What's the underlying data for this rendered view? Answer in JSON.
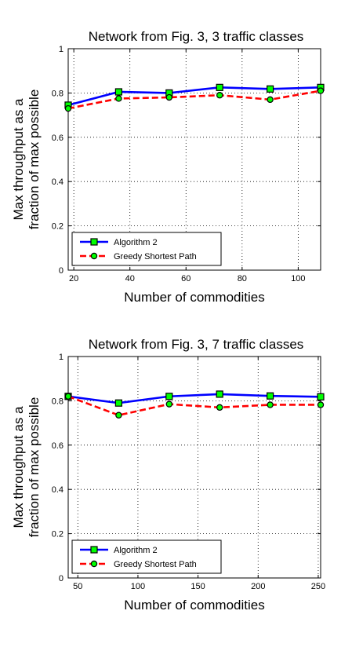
{
  "chart_data": [
    {
      "type": "line",
      "title": "Network from Fig. 3, 3 traffic classes",
      "xlabel": "Number of commodities",
      "ylabel": [
        "Max throughput as a",
        "fraction of max possible"
      ],
      "xlim": [
        18,
        108
      ],
      "ylim": [
        0,
        1
      ],
      "xticks": [
        20,
        40,
        60,
        80,
        100
      ],
      "yticks": [
        0,
        0.2,
        0.4,
        0.6,
        0.8,
        1
      ],
      "grid": true,
      "legend_position": "bottom-left",
      "x": [
        18,
        36,
        54,
        72,
        90,
        108
      ],
      "series": [
        {
          "name": "Algorithm 2",
          "color": "#0000ff",
          "marker_color": "#00ff00",
          "marker": "square",
          "line_style": "solid",
          "values": [
            0.745,
            0.805,
            0.8,
            0.825,
            0.818,
            0.825
          ]
        },
        {
          "name": "Greedy Shortest Path",
          "color": "#ff0000",
          "marker_color": "#00ff00",
          "marker": "circle",
          "line_style": "dashed",
          "values": [
            0.73,
            0.775,
            0.78,
            0.79,
            0.77,
            0.81
          ]
        }
      ]
    },
    {
      "type": "line",
      "title": "Network from Fig. 3, 7 traffic classes",
      "xlabel": "Number of commodities",
      "ylabel": [
        "Max throughput as a",
        "fraction of max possible"
      ],
      "xlim": [
        42,
        252
      ],
      "ylim": [
        0,
        1
      ],
      "xticks": [
        50,
        100,
        150,
        200,
        250
      ],
      "yticks": [
        0,
        0.2,
        0.4,
        0.6,
        0.8,
        1
      ],
      "grid": true,
      "legend_position": "bottom-left",
      "x": [
        42,
        84,
        126,
        168,
        210,
        252
      ],
      "series": [
        {
          "name": "Algorithm 2",
          "color": "#0000ff",
          "marker_color": "#00ff00",
          "marker": "square",
          "line_style": "solid",
          "values": [
            0.82,
            0.79,
            0.82,
            0.83,
            0.822,
            0.818
          ]
        },
        {
          "name": "Greedy Shortest Path",
          "color": "#ff0000",
          "marker_color": "#00ff00",
          "marker": "circle",
          "line_style": "dashed",
          "values": [
            0.82,
            0.735,
            0.785,
            0.77,
            0.782,
            0.782
          ]
        }
      ]
    }
  ]
}
